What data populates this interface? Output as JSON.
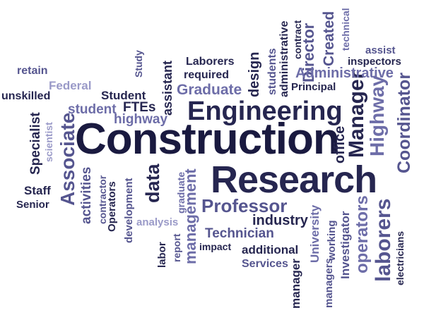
{
  "title": "",
  "palette": {
    "navy": "#1a1a40",
    "dark": "#262650",
    "blue": "#55558f",
    "mid": "#6d6da8",
    "light": "#9a9ac8"
  },
  "words": [
    {
      "text": "Construction",
      "color": "navy",
      "weight": 100,
      "vertical": false
    },
    {
      "text": "Research",
      "color": "dark",
      "weight": 85,
      "vertical": false
    },
    {
      "text": "Engineering",
      "color": "dark",
      "weight": 70,
      "vertical": false
    },
    {
      "text": "Associate",
      "color": "blue",
      "weight": 45,
      "vertical": true
    },
    {
      "text": "Manager",
      "color": "dark",
      "weight": 45,
      "vertical": true
    },
    {
      "text": "Highway",
      "color": "mid",
      "weight": 42,
      "vertical": true
    },
    {
      "text": "laborers",
      "color": "blue",
      "weight": 42,
      "vertical": true
    },
    {
      "text": "Professor",
      "color": "blue",
      "weight": 40,
      "vertical": false
    },
    {
      "text": "operators",
      "color": "mid",
      "weight": 38,
      "vertical": true
    },
    {
      "text": "Coordinator",
      "color": "blue",
      "weight": 36,
      "vertical": true
    },
    {
      "text": "data",
      "color": "dark",
      "weight": 36,
      "vertical": true
    },
    {
      "text": "Director",
      "color": "blue",
      "weight": 34,
      "vertical": true
    },
    {
      "text": "Administrative",
      "color": "mid",
      "weight": 33,
      "vertical": false
    },
    {
      "text": "management",
      "color": "mid",
      "weight": 32,
      "vertical": true
    },
    {
      "text": "Created",
      "color": "blue",
      "weight": 30,
      "vertical": true
    },
    {
      "text": "office",
      "color": "dark",
      "weight": 30,
      "vertical": true
    },
    {
      "text": "industry",
      "color": "dark",
      "weight": 30,
      "vertical": false
    },
    {
      "text": "Graduate",
      "color": "mid",
      "weight": 29,
      "vertical": false
    },
    {
      "text": "activities",
      "color": "blue",
      "weight": 29,
      "vertical": true
    },
    {
      "text": "Specialist",
      "color": "dark",
      "weight": 28,
      "vertical": true
    },
    {
      "text": "design",
      "color": "dark",
      "weight": 28,
      "vertical": true
    },
    {
      "text": "Technician",
      "color": "blue",
      "weight": 27,
      "vertical": false
    },
    {
      "text": "student",
      "color": "mid",
      "weight": 27,
      "vertical": false
    },
    {
      "text": "highway",
      "color": "mid",
      "weight": 27,
      "vertical": false
    },
    {
      "text": "FTEs",
      "color": "dark",
      "weight": 26,
      "vertical": false
    },
    {
      "text": "assistant",
      "color": "dark",
      "weight": 26,
      "vertical": true
    },
    {
      "text": "Investigator",
      "color": "blue",
      "weight": 26,
      "vertical": true
    },
    {
      "text": "manager",
      "color": "dark",
      "weight": 26,
      "vertical": true
    },
    {
      "text": "University",
      "color": "mid",
      "weight": 25,
      "vertical": true
    },
    {
      "text": "additional",
      "color": "dark",
      "weight": 25,
      "vertical": false
    },
    {
      "text": "Services",
      "color": "blue",
      "weight": 24,
      "vertical": false
    },
    {
      "text": "Staff",
      "color": "dark",
      "weight": 24,
      "vertical": false
    },
    {
      "text": "Student",
      "color": "dark",
      "weight": 24,
      "vertical": false
    },
    {
      "text": "students",
      "color": "blue",
      "weight": 23,
      "vertical": true
    },
    {
      "text": "administrative",
      "color": "dark",
      "weight": 23,
      "vertical": true
    },
    {
      "text": "Federal",
      "color": "light",
      "weight": 23,
      "vertical": false
    },
    {
      "text": "unskilled",
      "color": "dark",
      "weight": 23,
      "vertical": false
    },
    {
      "text": "retain",
      "color": "blue",
      "weight": 23,
      "vertical": false
    },
    {
      "text": "Principal",
      "color": "dark",
      "weight": 22,
      "vertical": false
    },
    {
      "text": "Laborers",
      "color": "dark",
      "weight": 22,
      "vertical": false
    },
    {
      "text": "required",
      "color": "dark",
      "weight": 22,
      "vertical": false
    },
    {
      "text": "assist",
      "color": "blue",
      "weight": 22,
      "vertical": false
    },
    {
      "text": "inspectors",
      "color": "dark",
      "weight": 22,
      "vertical": false
    },
    {
      "text": "technical",
      "color": "mid",
      "weight": 22,
      "vertical": true
    },
    {
      "text": "contract",
      "color": "dark",
      "weight": 22,
      "vertical": true
    },
    {
      "text": "managers",
      "color": "blue",
      "weight": 22,
      "vertical": true
    },
    {
      "text": "working",
      "color": "blue",
      "weight": 22,
      "vertical": true
    },
    {
      "text": "electricians",
      "color": "dark",
      "weight": 22,
      "vertical": true
    },
    {
      "text": "impact",
      "color": "dark",
      "weight": 21,
      "vertical": false
    },
    {
      "text": "analysis",
      "color": "light",
      "weight": 21,
      "vertical": false
    },
    {
      "text": "Senior",
      "color": "dark",
      "weight": 21,
      "vertical": false
    },
    {
      "text": "Operators",
      "color": "dark",
      "weight": 21,
      "vertical": true
    },
    {
      "text": "development",
      "color": "blue",
      "weight": 21,
      "vertical": true
    },
    {
      "text": "contractor",
      "color": "blue",
      "weight": 20,
      "vertical": true
    },
    {
      "text": "graduate",
      "color": "mid",
      "weight": 20,
      "vertical": true
    },
    {
      "text": "report",
      "color": "blue",
      "weight": 20,
      "vertical": true
    },
    {
      "text": "labor",
      "color": "dark",
      "weight": 20,
      "vertical": true
    },
    {
      "text": "scientist",
      "color": "light",
      "weight": 20,
      "vertical": true
    },
    {
      "text": "Study",
      "color": "blue",
      "weight": 20,
      "vertical": true
    }
  ]
}
